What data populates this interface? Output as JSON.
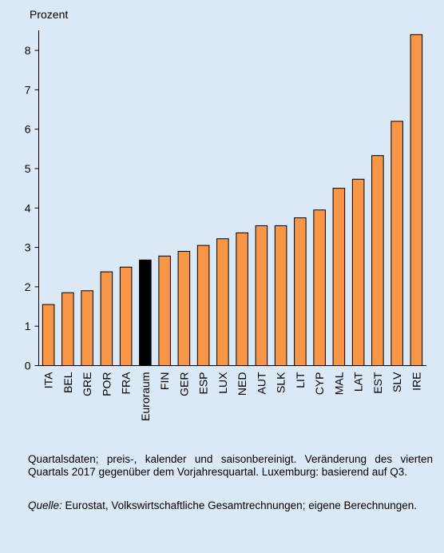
{
  "chart_data": {
    "type": "bar",
    "y_label": "Prozent",
    "categories": [
      "ITA",
      "BEL",
      "GRE",
      "POR",
      "FRA",
      "Euroraum",
      "FIN",
      "GER",
      "ESP",
      "LUX",
      "NED",
      "AUT",
      "SLK",
      "LIT",
      "CYP",
      "MAL",
      "LAT",
      "EST",
      "SLV",
      "IRE"
    ],
    "values": [
      1.55,
      1.85,
      1.9,
      2.38,
      2.5,
      2.68,
      2.78,
      2.9,
      3.05,
      3.22,
      3.37,
      3.55,
      3.55,
      3.75,
      3.95,
      4.5,
      4.73,
      5.33,
      6.2,
      8.4
    ],
    "colors": [
      "#f79646",
      "#f79646",
      "#f79646",
      "#f79646",
      "#f79646",
      "#000000",
      "#f79646",
      "#f79646",
      "#f79646",
      "#f79646",
      "#f79646",
      "#f79646",
      "#f79646",
      "#f79646",
      "#f79646",
      "#f79646",
      "#f79646",
      "#f79646",
      "#f79646",
      "#f79646"
    ],
    "ylim": [
      0,
      8.5
    ],
    "yticks": [
      0,
      1,
      2,
      3,
      4,
      5,
      6,
      7,
      8
    ],
    "grid": false
  },
  "notes": {
    "text": "Quartalsdaten; preis-, kalender und saisonbereinigt. Veränderung des vierten Quartals 2017 gegenüber dem Vorjahresquartal. Luxemburg: basierend auf Q3.",
    "source_label": "Quelle:",
    "source_text": "Eurostat, Volkswirtschaftliche Gesamtrechnungen; eigene Berechnungen."
  }
}
